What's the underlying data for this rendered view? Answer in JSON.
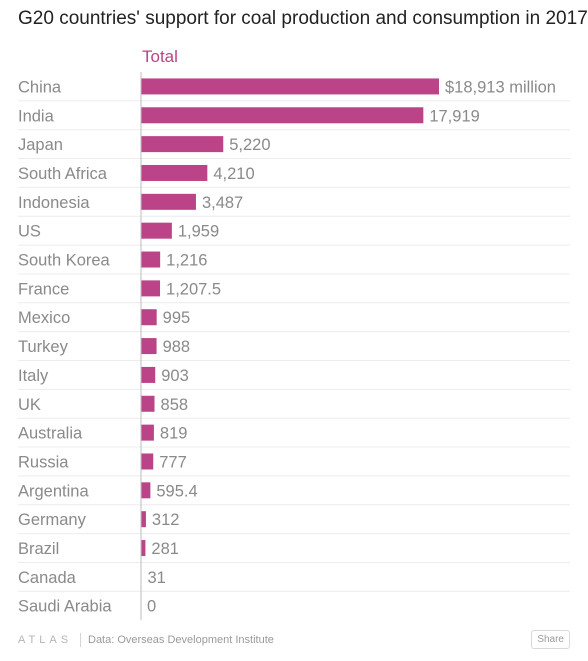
{
  "chart_data": {
    "type": "bar",
    "orientation": "horizontal",
    "title": "G20 countries' support for coal production and consumption in 2017",
    "series_name": "Total",
    "categories": [
      "China",
      "India",
      "Japan",
      "South Africa",
      "Indonesia",
      "US",
      "South Korea",
      "France",
      "Mexico",
      "Turkey",
      "Italy",
      "UK",
      "Australia",
      "Russia",
      "Argentina",
      "Germany",
      "Brazil",
      "Canada",
      "Saudi Arabia"
    ],
    "values": [
      18913,
      17919,
      5220,
      4210,
      3487,
      1959,
      1216,
      1207.5,
      995,
      988,
      903,
      858,
      819,
      777,
      595.4,
      312,
      281,
      31,
      0
    ],
    "value_labels": [
      "$18,913 million",
      "17,919",
      "5,220",
      "4,210",
      "3,487",
      "1,959",
      "1,216",
      "1,207.5",
      "995",
      "988",
      "903",
      "858",
      "819",
      "777",
      "595.4",
      "312",
      "281",
      "31",
      "0"
    ],
    "xlim": [
      0,
      18913
    ],
    "gridlines": "horizontal-light",
    "colors": {
      "bar": "#bb4488",
      "header": "#bb4488",
      "category_text": "#8a8a8a",
      "value_text": "#8a8a8a",
      "grid": "#ececec",
      "axis": "#bdbdbd"
    }
  },
  "footer": {
    "logo": "ATLAS",
    "source": "Data:  Overseas Development Institute",
    "share_label": "Share"
  }
}
